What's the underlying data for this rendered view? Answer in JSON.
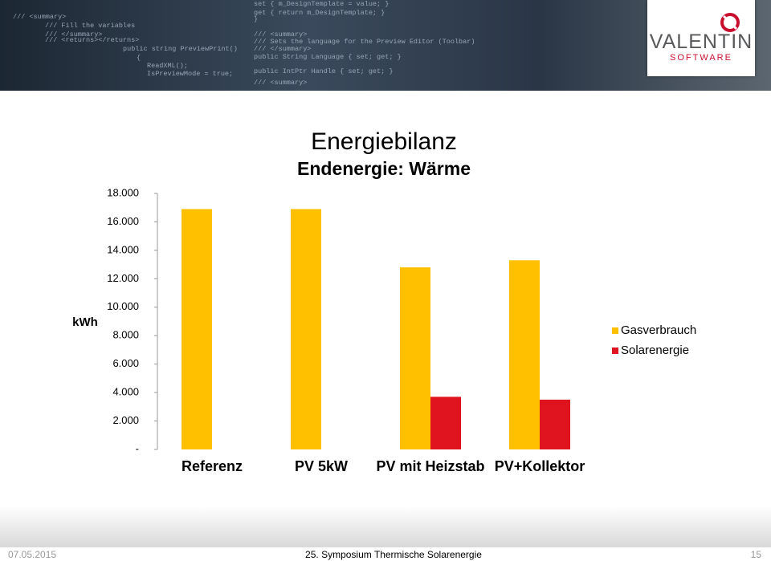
{
  "header": {
    "code_left": [
      "/// <summary>",
      "/// Fill the variables",
      "/// </summary>",
      "/// <returns></returns>",
      "public string PreviewPrint()",
      "{",
      "ReadXML();",
      "IsPreviewMode = true;"
    ],
    "code_right": [
      "set { m_DesignTemplate = value; }",
      "get { return m_DesignTemplate; }",
      "}",
      "/// <summary>",
      "/// Sets the language for the Preview Editor (Toolbar)",
      "/// </summary>",
      "public String Language { set; get; }",
      "public IntPtr Handle { set; get; }",
      "/// <summary>"
    ],
    "logo": {
      "name": "VALENTIN",
      "subtitle": "SOFTWARE"
    }
  },
  "chart_data": {
    "type": "bar",
    "title": "Energiebilanz",
    "subtitle": "Endenergie: Wärme",
    "y_label": "kWh",
    "categories": [
      "Referenz",
      "PV 5kW",
      "PV mit Heizstab",
      "PV+Kollektor"
    ],
    "series": [
      {
        "name": "Gasverbrauch",
        "color": "#ffc000",
        "values": [
          16900,
          16900,
          12800,
          13300
        ]
      },
      {
        "name": "Solarenergie",
        "color": "#e0141e",
        "values": [
          0,
          0,
          3700,
          3500
        ]
      }
    ],
    "ylim": [
      0,
      18000
    ],
    "yticks": [
      {
        "value": 0,
        "label": "-"
      },
      {
        "value": 2000,
        "label": "2.000"
      },
      {
        "value": 4000,
        "label": "4.000"
      },
      {
        "value": 6000,
        "label": "6.000"
      },
      {
        "value": 8000,
        "label": "8.000"
      },
      {
        "value": 10000,
        "label": "10.000"
      },
      {
        "value": 12000,
        "label": "12.000"
      },
      {
        "value": 14000,
        "label": "14.000"
      },
      {
        "value": 16000,
        "label": "16.000"
      },
      {
        "value": 18000,
        "label": "18.000"
      }
    ],
    "grid": false,
    "legend": "right"
  },
  "footer": {
    "date": "07.05.2015",
    "event": "25. Symposium Thermische Solarenergie",
    "page": "15"
  }
}
